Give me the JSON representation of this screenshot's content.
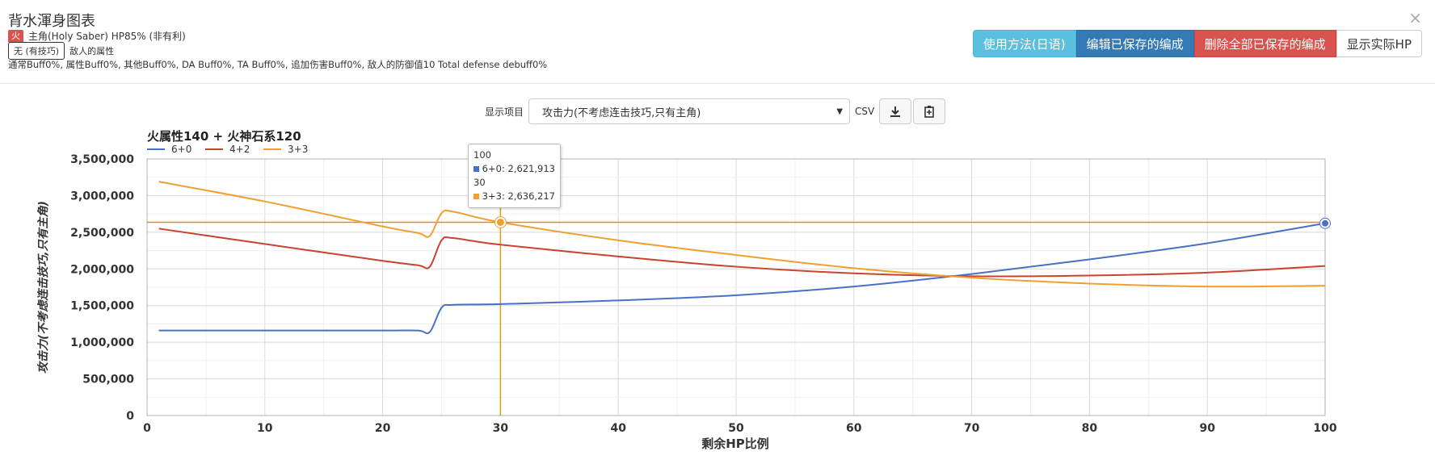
{
  "modal": {
    "title": "背水渾身图表",
    "close": "×"
  },
  "info": {
    "element_badge": "火",
    "character": "主角(Holy Saber) HP85% (非有利)",
    "attr_box": "无 (有技巧)",
    "enemy_attr": "敌人的属性",
    "buffs": "通常Buff0%, 属性Buff0%, 其他Buff0%, DA Buff0%, TA Buff0%, 追加伤害Buff0%, 敌人的防御值10 Total defense debuff0%"
  },
  "buttons": {
    "usage": "使用方法(日语)",
    "edit_saved": "编辑已保存的编成",
    "delete_all": "删除全部已保存的编成",
    "show_hp": "显示实际HP"
  },
  "controls": {
    "label": "显示项目",
    "select_value": "攻击力(不考虑连击技巧,只有主角)",
    "csv_label": "CSV"
  },
  "tooltip": {
    "x1": "100",
    "s1": "6+0: 2,621,913",
    "x2": "30",
    "s2": "3+3: 2,636,217"
  },
  "chart_data": {
    "type": "line",
    "title": "火属性140 + 火神石系120",
    "xlabel": "剩余HP比例",
    "ylabel": "攻击力(不考虑连击技巧,只有主角)",
    "xlim": [
      0,
      100
    ],
    "ylim": [
      0,
      3500000
    ],
    "xticks": [
      0,
      10,
      20,
      30,
      40,
      50,
      60,
      70,
      80,
      90,
      100
    ],
    "yticks": [
      0,
      500000,
      1000000,
      1500000,
      2000000,
      2500000,
      3000000,
      3500000
    ],
    "ytick_labels": [
      "0",
      "500,000",
      "1,000,000",
      "1,500,000",
      "2,000,000",
      "2,500,000",
      "3,000,000",
      "3,500,000"
    ],
    "grid": true,
    "legend_position": "top-left",
    "crosshair": {
      "x": 30,
      "y": 2636217
    },
    "series": [
      {
        "name": "6+0",
        "color": "#4a6fc7",
        "x": [
          1,
          10,
          20,
          23,
          24,
          25,
          26,
          30,
          40,
          50,
          60,
          70,
          80,
          90,
          100
        ],
        "y": [
          1160000,
          1160000,
          1160000,
          1160000,
          1140000,
          1470000,
          1510000,
          1520000,
          1570000,
          1640000,
          1760000,
          1930000,
          2130000,
          2350000,
          2621913
        ]
      },
      {
        "name": "4+2",
        "color": "#c9432f",
        "x": [
          1,
          10,
          20,
          23,
          24,
          25,
          26,
          30,
          40,
          50,
          60,
          70,
          80,
          90,
          100
        ],
        "y": [
          2550000,
          2340000,
          2110000,
          2050000,
          2030000,
          2390000,
          2420000,
          2330000,
          2170000,
          2030000,
          1940000,
          1900000,
          1910000,
          1950000,
          2040000
        ]
      },
      {
        "name": "3+3",
        "color": "#f0a030",
        "x": [
          1,
          10,
          20,
          23,
          24,
          25,
          26,
          30,
          40,
          50,
          60,
          70,
          80,
          90,
          100
        ],
        "y": [
          3190000,
          2920000,
          2580000,
          2490000,
          2450000,
          2760000,
          2780000,
          2636217,
          2390000,
          2190000,
          2010000,
          1880000,
          1800000,
          1760000,
          1770000
        ]
      }
    ]
  }
}
